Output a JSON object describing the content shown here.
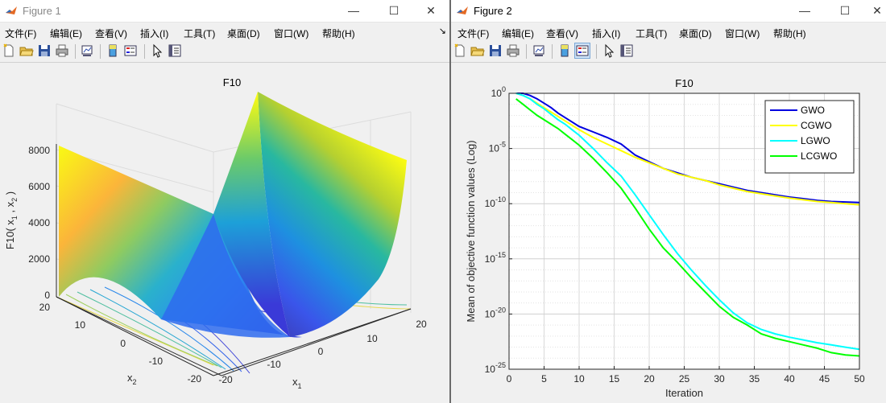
{
  "windows": [
    {
      "title": "Figure 1",
      "menu": [
        "文件(F)",
        "编辑(E)",
        "查看(V)",
        "插入(I)",
        "工具(T)",
        "桌面(D)",
        "窗口(W)",
        "帮助(H)"
      ],
      "plot": {
        "title": "F10",
        "zlabel": "F10( x",
        "zlabel_sub1": "1",
        "zlabel_mid": " , x",
        "zlabel_sub2": "2",
        "zlabel_end": " )",
        "xlabel": "x",
        "xlabel_sub": "1",
        "ylabel": "x",
        "ylabel_sub": "2",
        "zticks": [
          "0",
          "2000",
          "4000",
          "6000",
          "8000"
        ],
        "x1ticks": [
          "-20",
          "-10",
          "0",
          "10",
          "20"
        ],
        "x2ticks": [
          "20",
          "10",
          "0",
          "-10",
          "-20"
        ]
      }
    },
    {
      "title": "Figure 2",
      "menu": [
        "文件(F)",
        "编辑(E)",
        "查看(V)",
        "插入(I)",
        "工具(T)",
        "桌面(D)",
        "窗口(W)",
        "帮助(H)"
      ]
    }
  ],
  "window_buttons": {
    "minimize": "—",
    "maximize": "☐",
    "close": "✕"
  },
  "chart_data": {
    "type": "line",
    "title": "F10",
    "xlabel": "Iteration",
    "ylabel": "Mean of objective function values (Log)",
    "yscale": "log",
    "xlim": [
      0,
      50
    ],
    "ylim_exponent": [
      -25,
      0
    ],
    "xticks": [
      "0",
      "5",
      "10",
      "15",
      "20",
      "25",
      "30",
      "35",
      "40",
      "45",
      "50"
    ],
    "yticks_base": "10",
    "yticks_exp": [
      "0",
      "-5",
      "-10",
      "-15",
      "-20",
      "-25"
    ],
    "grid": true,
    "legend_position": "top-right",
    "x": [
      1,
      2,
      3,
      4,
      5,
      6,
      7,
      8,
      9,
      10,
      12,
      14,
      16,
      18,
      20,
      22,
      24,
      26,
      28,
      30,
      32,
      34,
      36,
      38,
      40,
      42,
      44,
      46,
      48,
      50
    ],
    "series": [
      {
        "name": "GWO",
        "color": "#0000e0",
        "log10": [
          0,
          0,
          -0.2,
          -0.5,
          -0.9,
          -1.3,
          -1.8,
          -2.2,
          -2.6,
          -3.0,
          -3.5,
          -4.0,
          -4.6,
          -5.6,
          -6.2,
          -6.8,
          -7.2,
          -7.6,
          -7.9,
          -8.2,
          -8.5,
          -8.8,
          -9.0,
          -9.2,
          -9.4,
          -9.55,
          -9.7,
          -9.8,
          -9.85,
          -9.9
        ]
      },
      {
        "name": "CGWO",
        "color": "#ffff00",
        "log10": [
          0,
          -0.2,
          -0.5,
          -0.9,
          -1.3,
          -1.7,
          -2.1,
          -2.5,
          -2.9,
          -3.3,
          -4.0,
          -4.6,
          -5.2,
          -5.8,
          -6.3,
          -6.8,
          -7.3,
          -7.6,
          -7.9,
          -8.3,
          -8.6,
          -8.9,
          -9.1,
          -9.3,
          -9.5,
          -9.65,
          -9.8,
          -9.9,
          -10.0,
          -10.1
        ]
      },
      {
        "name": "LGWO",
        "color": "#00ffff",
        "log10": [
          0,
          -0.2,
          -0.5,
          -1.0,
          -1.4,
          -1.9,
          -2.4,
          -2.8,
          -3.3,
          -3.8,
          -5.0,
          -6.3,
          -7.5,
          -9.2,
          -11.0,
          -12.8,
          -14.5,
          -16.0,
          -17.4,
          -18.7,
          -19.9,
          -20.8,
          -21.4,
          -21.8,
          -22.1,
          -22.35,
          -22.6,
          -22.8,
          -23.0,
          -23.2
        ]
      },
      {
        "name": "LCGWO",
        "color": "#00ff00",
        "log10": [
          -0.5,
          -1.0,
          -1.5,
          -2.0,
          -2.4,
          -2.8,
          -3.2,
          -3.7,
          -4.2,
          -4.7,
          -5.9,
          -7.2,
          -8.6,
          -10.4,
          -12.3,
          -14.0,
          -15.3,
          -16.7,
          -18.0,
          -19.3,
          -20.3,
          -21.0,
          -21.8,
          -22.2,
          -22.5,
          -22.8,
          -23.1,
          -23.5,
          -23.7,
          -23.8
        ]
      }
    ]
  }
}
